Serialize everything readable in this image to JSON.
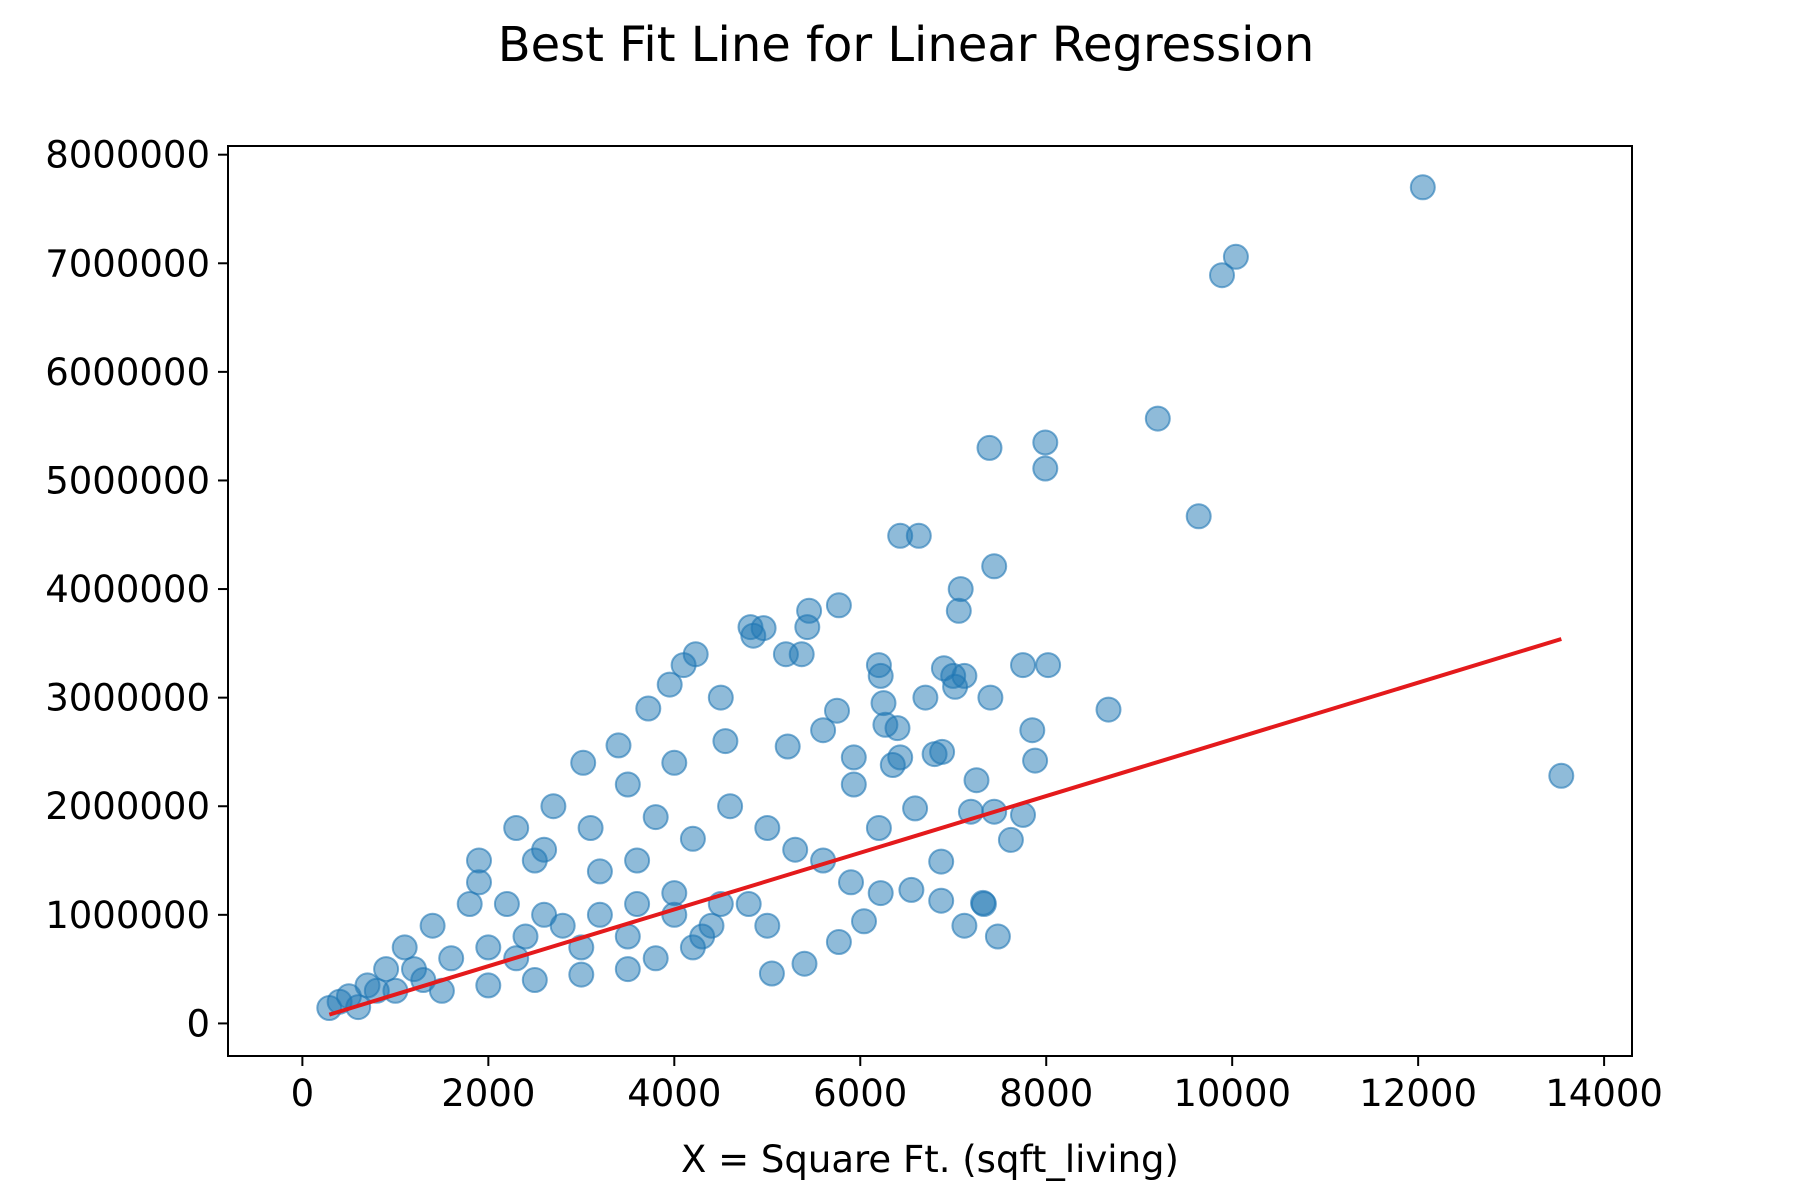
{
  "chart_data": {
    "type": "scatter",
    "title": "Best Fit Line for Linear Regression",
    "xlabel": "X = Square Ft. (sqft_living)",
    "ylabel": "",
    "xlim": [
      -800,
      14300
    ],
    "ylim": [
      -300000,
      8080000
    ],
    "xticks": [
      0,
      2000,
      4000,
      6000,
      8000,
      10000,
      12000,
      14000
    ],
    "xtick_labels": [
      "0",
      "2000",
      "4000",
      "6000",
      "8000",
      "10000",
      "12000",
      "14000"
    ],
    "yticks": [
      0,
      1000000,
      2000000,
      3000000,
      4000000,
      5000000,
      6000000,
      7000000,
      8000000
    ],
    "ytick_labels": [
      "0",
      "1000000",
      "2000000",
      "3000000",
      "4000000",
      "5000000",
      "6000000",
      "7000000",
      "8000000"
    ],
    "grid": false,
    "colors": {
      "points": "#1f77b4",
      "fit_line": "#e41a1c"
    },
    "point_alpha": 0.5,
    "points": [
      [
        290,
        142000
      ],
      [
        13540,
        2280000
      ],
      [
        12050,
        7700000
      ],
      [
        10040,
        7060000
      ],
      [
        9890,
        6890000
      ],
      [
        9200,
        5570000
      ],
      [
        7390,
        5300000
      ],
      [
        7990,
        5350000
      ],
      [
        7990,
        5110000
      ],
      [
        9640,
        4670000
      ],
      [
        6430,
        4490000
      ],
      [
        6630,
        4490000
      ],
      [
        7440,
        4210000
      ],
      [
        7080,
        4000000
      ],
      [
        7060,
        3800000
      ],
      [
        5770,
        3850000
      ],
      [
        5450,
        3800000
      ],
      [
        5430,
        3650000
      ],
      [
        4820,
        3650000
      ],
      [
        4960,
        3640000
      ],
      [
        4850,
        3570000
      ],
      [
        4230,
        3400000
      ],
      [
        5200,
        3400000
      ],
      [
        5370,
        3400000
      ],
      [
        4100,
        3300000
      ],
      [
        6200,
        3300000
      ],
      [
        6900,
        3270000
      ],
      [
        7120,
        3200000
      ],
      [
        7000,
        3200000
      ],
      [
        7750,
        3300000
      ],
      [
        8020,
        3300000
      ],
      [
        6220,
        3200000
      ],
      [
        7020,
        3100000
      ],
      [
        6700,
        3000000
      ],
      [
        7400,
        3000000
      ],
      [
        6250,
        2950000
      ],
      [
        5750,
        2880000
      ],
      [
        8670,
        2890000
      ],
      [
        7850,
        2700000
      ],
      [
        6270,
        2750000
      ],
      [
        6400,
        2720000
      ],
      [
        6430,
        2450000
      ],
      [
        6350,
        2380000
      ],
      [
        6880,
        2500000
      ],
      [
        7880,
        2420000
      ],
      [
        6800,
        2480000
      ],
      [
        7250,
        2240000
      ],
      [
        5930,
        2200000
      ],
      [
        7190,
        1950000
      ],
      [
        7440,
        1950000
      ],
      [
        7750,
        1920000
      ],
      [
        7620,
        1690000
      ],
      [
        6590,
        1980000
      ],
      [
        6200,
        1800000
      ],
      [
        6870,
        1490000
      ],
      [
        7320,
        1110000
      ],
      [
        7330,
        1100000
      ],
      [
        6550,
        1230000
      ],
      [
        6870,
        1130000
      ],
      [
        6220,
        1200000
      ],
      [
        6040,
        940000
      ],
      [
        7120,
        900000
      ],
      [
        7480,
        800000
      ],
      [
        5770,
        750000
      ],
      [
        5400,
        550000
      ],
      [
        5050,
        460000
      ],
      [
        3950,
        3120000
      ],
      [
        4500,
        3000000
      ],
      [
        3720,
        2900000
      ],
      [
        3400,
        2560000
      ],
      [
        3020,
        2400000
      ],
      [
        2700,
        2000000
      ],
      [
        2300,
        1800000
      ],
      [
        1900,
        1500000
      ],
      [
        4550,
        2600000
      ],
      [
        4000,
        2400000
      ],
      [
        5220,
        2550000
      ],
      [
        5600,
        2700000
      ],
      [
        5930,
        2450000
      ],
      [
        3500,
        2200000
      ],
      [
        2500,
        1500000
      ],
      [
        3100,
        1800000
      ],
      [
        3800,
        1900000
      ],
      [
        4200,
        1700000
      ],
      [
        4600,
        2000000
      ],
      [
        5000,
        1800000
      ],
      [
        5300,
        1600000
      ],
      [
        5600,
        1500000
      ],
      [
        5900,
        1300000
      ],
      [
        4000,
        1200000
      ],
      [
        4500,
        1100000
      ],
      [
        5000,
        900000
      ],
      [
        3500,
        800000
      ],
      [
        3000,
        700000
      ],
      [
        4200,
        700000
      ],
      [
        2600,
        1000000
      ],
      [
        2200,
        1100000
      ],
      [
        1800,
        1100000
      ],
      [
        1400,
        900000
      ],
      [
        1100,
        700000
      ],
      [
        900,
        500000
      ],
      [
        700,
        350000
      ],
      [
        500,
        250000
      ],
      [
        400,
        200000
      ],
      [
        1000,
        300000
      ],
      [
        1500,
        300000
      ],
      [
        2000,
        350000
      ],
      [
        2500,
        400000
      ],
      [
        3000,
        450000
      ],
      [
        3500,
        500000
      ],
      [
        1200,
        500000
      ],
      [
        1600,
        600000
      ],
      [
        2000,
        700000
      ],
      [
        2400,
        800000
      ],
      [
        2800,
        900000
      ],
      [
        3200,
        1000000
      ],
      [
        3600,
        1100000
      ],
      [
        4000,
        1000000
      ],
      [
        4400,
        900000
      ],
      [
        4800,
        1100000
      ],
      [
        1900,
        1300000
      ],
      [
        2600,
        1600000
      ],
      [
        3200,
        1400000
      ],
      [
        3600,
        1500000
      ],
      [
        2300,
        600000
      ],
      [
        1300,
        400000
      ],
      [
        800,
        300000
      ],
      [
        600,
        150000
      ],
      [
        3800,
        600000
      ],
      [
        4300,
        800000
      ]
    ],
    "fit_line": {
      "x": [
        290,
        13540
      ],
      "y": [
        81000,
        3540000
      ]
    }
  }
}
